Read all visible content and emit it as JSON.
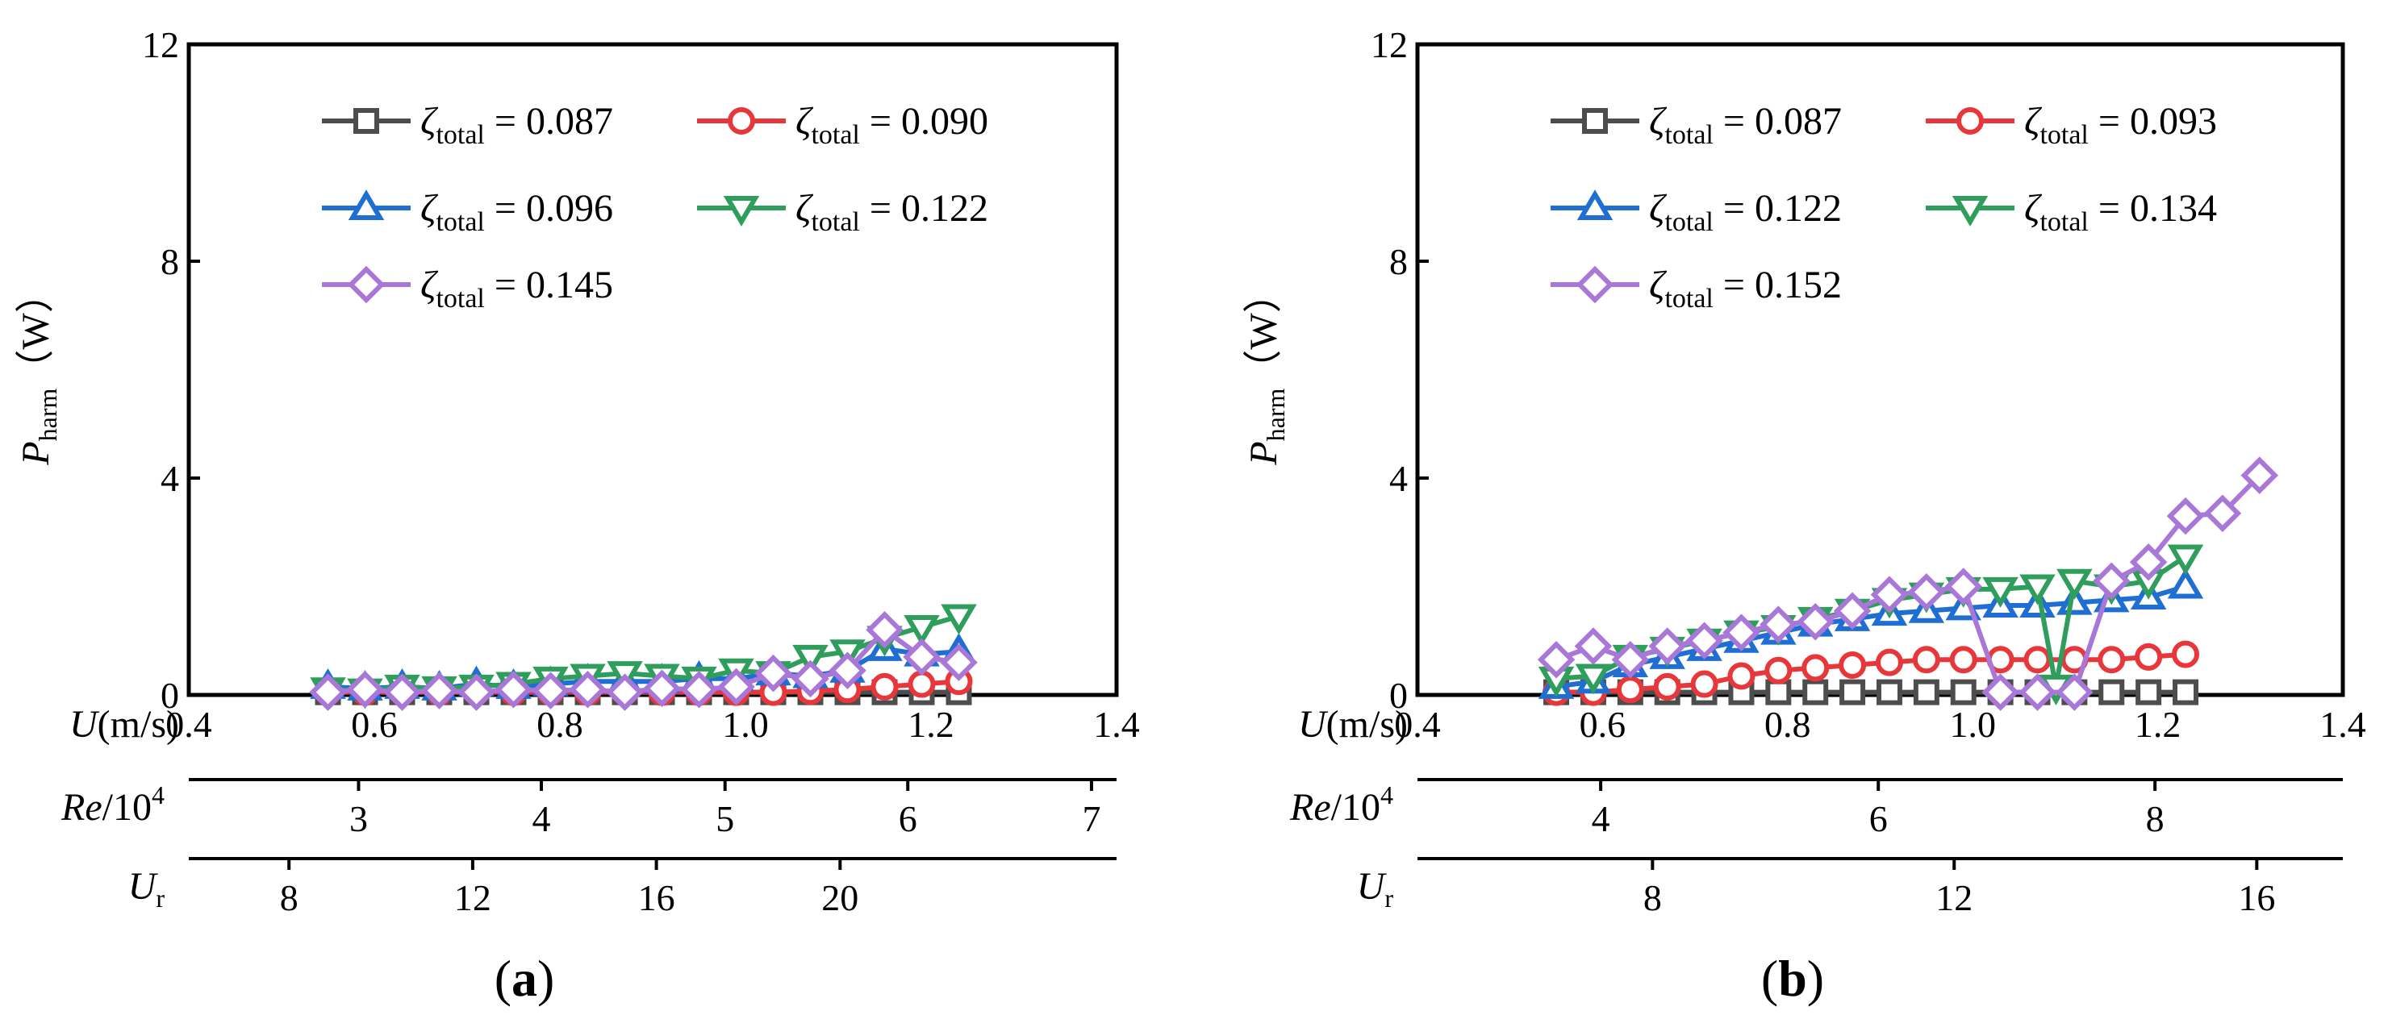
{
  "chart_data": [
    {
      "type": "line",
      "panel_label": "(a)",
      "ylabel_main": "P",
      "ylabel_sub": "harm",
      "ylabel_unit": "（W）",
      "xlabel": "U(m/s)",
      "xlim": [
        0.4,
        1.4
      ],
      "ylim": [
        0,
        12
      ],
      "x_ticks": [
        "0.4",
        "0.6",
        "0.8",
        "1.0",
        "1.2",
        "1.4"
      ],
      "y_ticks": [
        "0",
        "4",
        "8",
        "12"
      ],
      "secondary_axes": [
        {
          "label_main": "Re",
          "label_rest": "/10",
          "label_sup": "4",
          "ticks": [
            {
              "u": 0.583,
              "label": "3"
            },
            {
              "u": 0.78,
              "label": "4"
            },
            {
              "u": 0.978,
              "label": "5"
            },
            {
              "u": 1.175,
              "label": "6"
            },
            {
              "u": 1.373,
              "label": "7"
            }
          ]
        },
        {
          "label_main": "U",
          "label_sub": "r",
          "ticks": [
            {
              "u": 0.508,
              "label": "8"
            },
            {
              "u": 0.706,
              "label": "12"
            },
            {
              "u": 0.904,
              "label": "16"
            },
            {
              "u": 1.102,
              "label": "20"
            }
          ]
        }
      ],
      "series": [
        {
          "name_sym": "ζ",
          "name_sub": "total",
          "name_val": " = 0.087",
          "marker": "square",
          "color": "#4d4d4d",
          "points": [
            [
              0.55,
              0.05
            ],
            [
              0.59,
              0.05
            ],
            [
              0.63,
              0.05
            ],
            [
              0.67,
              0.05
            ],
            [
              0.71,
              0.05
            ],
            [
              0.75,
              0.05
            ],
            [
              0.79,
              0.05
            ],
            [
              0.83,
              0.05
            ],
            [
              0.87,
              0.05
            ],
            [
              0.91,
              0.05
            ],
            [
              0.95,
              0.05
            ],
            [
              0.99,
              0.05
            ],
            [
              1.03,
              0.05
            ],
            [
              1.07,
              0.05
            ],
            [
              1.11,
              0.05
            ],
            [
              1.15,
              0.05
            ],
            [
              1.19,
              0.05
            ],
            [
              1.23,
              0.05
            ]
          ]
        },
        {
          "name_sym": "ζ",
          "name_sub": "total",
          "name_val": " = 0.090",
          "marker": "circle",
          "color": "#e8373b",
          "points": [
            [
              0.55,
              0.05
            ],
            [
              0.59,
              0.05
            ],
            [
              0.63,
              0.05
            ],
            [
              0.67,
              0.05
            ],
            [
              0.71,
              0.05
            ],
            [
              0.75,
              0.05
            ],
            [
              0.79,
              0.05
            ],
            [
              0.83,
              0.05
            ],
            [
              0.87,
              0.05
            ],
            [
              0.91,
              0.05
            ],
            [
              0.95,
              0.05
            ],
            [
              0.99,
              0.05
            ],
            [
              1.03,
              0.05
            ],
            [
              1.07,
              0.07
            ],
            [
              1.11,
              0.1
            ],
            [
              1.15,
              0.15
            ],
            [
              1.19,
              0.2
            ],
            [
              1.23,
              0.25
            ]
          ]
        },
        {
          "name_sym": "ζ",
          "name_sub": "total",
          "name_val": " = 0.096",
          "marker": "triangle-up",
          "color": "#1f6fd2",
          "points": [
            [
              0.55,
              0.15
            ],
            [
              0.59,
              0.12
            ],
            [
              0.63,
              0.15
            ],
            [
              0.67,
              0.12
            ],
            [
              0.71,
              0.2
            ],
            [
              0.75,
              0.15
            ],
            [
              0.79,
              0.2
            ],
            [
              0.83,
              0.25
            ],
            [
              0.87,
              0.25
            ],
            [
              0.91,
              0.25
            ],
            [
              0.95,
              0.3
            ],
            [
              0.99,
              0.3
            ],
            [
              1.03,
              0.4
            ],
            [
              1.07,
              0.35
            ],
            [
              1.11,
              0.45
            ],
            [
              1.15,
              0.85
            ],
            [
              1.19,
              0.75
            ],
            [
              1.23,
              0.8
            ]
          ]
        },
        {
          "name_sym": "ζ",
          "name_sub": "total",
          "name_val": " = 0.122",
          "marker": "triangle-down",
          "color": "#2f9d5b",
          "points": [
            [
              0.55,
              0.1
            ],
            [
              0.59,
              0.08
            ],
            [
              0.63,
              0.15
            ],
            [
              0.67,
              0.12
            ],
            [
              0.71,
              0.15
            ],
            [
              0.75,
              0.2
            ],
            [
              0.79,
              0.3
            ],
            [
              0.83,
              0.35
            ],
            [
              0.87,
              0.4
            ],
            [
              0.91,
              0.35
            ],
            [
              0.95,
              0.3
            ],
            [
              0.99,
              0.45
            ],
            [
              1.03,
              0.4
            ],
            [
              1.07,
              0.7
            ],
            [
              1.11,
              0.8
            ],
            [
              1.15,
              1.05
            ],
            [
              1.19,
              1.25
            ],
            [
              1.23,
              1.45
            ]
          ]
        },
        {
          "name_sym": "ζ",
          "name_sub": "total",
          "name_val": " = 0.145",
          "marker": "diamond",
          "color": "#a877d8",
          "points": [
            [
              0.55,
              0.05
            ],
            [
              0.59,
              0.1
            ],
            [
              0.63,
              0.05
            ],
            [
              0.67,
              0.08
            ],
            [
              0.71,
              0.05
            ],
            [
              0.75,
              0.1
            ],
            [
              0.79,
              0.08
            ],
            [
              0.83,
              0.1
            ],
            [
              0.87,
              0.05
            ],
            [
              0.91,
              0.12
            ],
            [
              0.95,
              0.1
            ],
            [
              0.99,
              0.15
            ],
            [
              1.03,
              0.4
            ],
            [
              1.07,
              0.3
            ],
            [
              1.11,
              0.45
            ],
            [
              1.15,
              1.2
            ],
            [
              1.19,
              0.7
            ],
            [
              1.23,
              0.6
            ]
          ]
        }
      ]
    },
    {
      "type": "line",
      "panel_label": "(b)",
      "ylabel_main": "P",
      "ylabel_sub": "harm",
      "ylabel_unit": "（W）",
      "xlabel": "U(m/s)",
      "xlim": [
        0.4,
        1.4
      ],
      "ylim": [
        0,
        12
      ],
      "x_ticks": [
        "0.4",
        "0.6",
        "0.8",
        "1.0",
        "1.2",
        "1.4"
      ],
      "y_ticks": [
        "0",
        "4",
        "8",
        "12"
      ],
      "secondary_axes": [
        {
          "label_main": "Re",
          "label_rest": "/10",
          "label_sup": "4",
          "ticks": [
            {
              "u": 0.598,
              "label": "4"
            },
            {
              "u": 0.898,
              "label": "6"
            },
            {
              "u": 1.197,
              "label": "8"
            }
          ]
        },
        {
          "label_main": "U",
          "label_sub": "r",
          "ticks": [
            {
              "u": 0.654,
              "label": "8"
            },
            {
              "u": 0.98,
              "label": "12"
            },
            {
              "u": 1.307,
              "label": "16"
            }
          ]
        }
      ],
      "series": [
        {
          "name_sym": "ζ",
          "name_sub": "total",
          "name_val": " = 0.087",
          "marker": "square",
          "color": "#4d4d4d",
          "points": [
            [
              0.55,
              0.05
            ],
            [
              0.59,
              0.05
            ],
            [
              0.63,
              0.05
            ],
            [
              0.67,
              0.05
            ],
            [
              0.71,
              0.05
            ],
            [
              0.75,
              0.05
            ],
            [
              0.79,
              0.05
            ],
            [
              0.83,
              0.05
            ],
            [
              0.87,
              0.05
            ],
            [
              0.91,
              0.05
            ],
            [
              0.95,
              0.05
            ],
            [
              0.99,
              0.05
            ],
            [
              1.03,
              0.05
            ],
            [
              1.07,
              0.05
            ],
            [
              1.11,
              0.05
            ],
            [
              1.15,
              0.05
            ],
            [
              1.19,
              0.05
            ],
            [
              1.23,
              0.05
            ]
          ]
        },
        {
          "name_sym": "ζ",
          "name_sub": "total",
          "name_val": " = 0.093",
          "marker": "circle",
          "color": "#e8373b",
          "points": [
            [
              0.55,
              0.05
            ],
            [
              0.59,
              0.05
            ],
            [
              0.63,
              0.1
            ],
            [
              0.67,
              0.15
            ],
            [
              0.71,
              0.2
            ],
            [
              0.75,
              0.35
            ],
            [
              0.79,
              0.45
            ],
            [
              0.83,
              0.5
            ],
            [
              0.87,
              0.55
            ],
            [
              0.91,
              0.6
            ],
            [
              0.95,
              0.65
            ],
            [
              0.99,
              0.65
            ],
            [
              1.03,
              0.65
            ],
            [
              1.07,
              0.65
            ],
            [
              1.11,
              0.65
            ],
            [
              1.15,
              0.65
            ],
            [
              1.19,
              0.7
            ],
            [
              1.23,
              0.75
            ]
          ]
        },
        {
          "name_sym": "ζ",
          "name_sub": "total",
          "name_val": " = 0.122",
          "marker": "triangle-up",
          "color": "#1f6fd2",
          "points": [
            [
              0.55,
              0.15
            ],
            [
              0.59,
              0.25
            ],
            [
              0.63,
              0.55
            ],
            [
              0.67,
              0.7
            ],
            [
              0.71,
              0.85
            ],
            [
              0.75,
              1.0
            ],
            [
              0.79,
              1.15
            ],
            [
              0.83,
              1.3
            ],
            [
              0.87,
              1.4
            ],
            [
              0.91,
              1.5
            ],
            [
              0.95,
              1.55
            ],
            [
              0.99,
              1.6
            ],
            [
              1.03,
              1.65
            ],
            [
              1.07,
              1.65
            ],
            [
              1.11,
              1.7
            ],
            [
              1.15,
              1.75
            ],
            [
              1.19,
              1.8
            ],
            [
              1.23,
              2.0
            ]
          ]
        },
        {
          "name_sym": "ζ",
          "name_sub": "total",
          "name_val": " = 0.134",
          "marker": "triangle-down",
          "color": "#2f9d5b",
          "points": [
            [
              0.55,
              0.3
            ],
            [
              0.59,
              0.35
            ],
            [
              0.63,
              0.7
            ],
            [
              0.67,
              0.85
            ],
            [
              0.71,
              1.0
            ],
            [
              0.75,
              1.15
            ],
            [
              0.79,
              1.25
            ],
            [
              0.83,
              1.4
            ],
            [
              0.87,
              1.55
            ],
            [
              0.91,
              1.75
            ],
            [
              0.95,
              1.85
            ],
            [
              0.99,
              1.95
            ],
            [
              1.03,
              1.95
            ],
            [
              1.07,
              2.0
            ],
            [
              1.09,
              0.15
            ],
            [
              1.11,
              2.1
            ],
            [
              1.15,
              2.0
            ],
            [
              1.19,
              2.1
            ],
            [
              1.23,
              2.55
            ]
          ]
        },
        {
          "name_sym": "ζ",
          "name_sub": "total",
          "name_val": " = 0.152",
          "marker": "diamond",
          "color": "#a877d8",
          "points": [
            [
              0.55,
              0.65
            ],
            [
              0.59,
              0.9
            ],
            [
              0.63,
              0.65
            ],
            [
              0.67,
              0.9
            ],
            [
              0.71,
              1.0
            ],
            [
              0.75,
              1.15
            ],
            [
              0.79,
              1.3
            ],
            [
              0.83,
              1.35
            ],
            [
              0.87,
              1.55
            ],
            [
              0.91,
              1.85
            ],
            [
              0.95,
              1.9
            ],
            [
              0.99,
              2.0
            ],
            [
              1.03,
              0.05
            ],
            [
              1.07,
              0.05
            ],
            [
              1.11,
              0.05
            ],
            [
              1.15,
              2.1
            ],
            [
              1.19,
              2.45
            ],
            [
              1.23,
              3.3
            ],
            [
              1.27,
              3.35
            ],
            [
              1.31,
              4.05
            ]
          ]
        }
      ]
    }
  ]
}
